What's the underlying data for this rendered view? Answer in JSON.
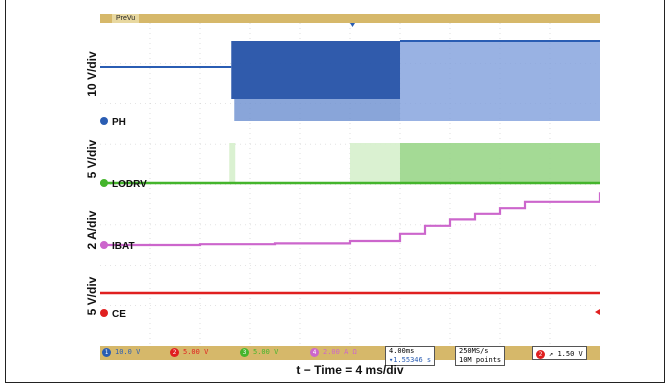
{
  "scope": {
    "mode_label": "PreVu",
    "channels": [
      {
        "id": "ch1",
        "name": "PH",
        "color": "#2a5db3",
        "scale_label": "10 V/div",
        "status": "10.0 V",
        "chip": "1"
      },
      {
        "id": "ch2",
        "name": "LODRV",
        "color": "#44b52c",
        "scale_label": "5 V/div",
        "status": "5.00 V",
        "chip": "3"
      },
      {
        "id": "ch3",
        "name": "IBAT",
        "color": "#cc66cc",
        "scale_label": "2 A/div",
        "status": "2.00 A Ω",
        "chip": "4"
      },
      {
        "id": "ch4",
        "name": "CE",
        "color": "#e02020",
        "scale_label": "5 V/div",
        "status": "5.00 V",
        "chip": "2"
      }
    ],
    "status": {
      "timebase": "4.00ms",
      "trigger_pos": "▾1.55346 s",
      "sample_rate": "250MS/s",
      "record": "10M points",
      "trig_chip": "2",
      "trig_level": "1.50 V",
      "trig_slope": "↗"
    },
    "xlabel": "t − Time = 4 ms/div"
  },
  "chart_data": {
    "type": "line",
    "title": "",
    "xlabel": "t − Time = 4 ms/div",
    "x_unit": "ms",
    "xlim": [
      0,
      40
    ],
    "series": [
      {
        "name": "PH",
        "ylabel": "10 V/div",
        "x": [
          0,
          10.5,
          10.6,
          24,
          40
        ],
        "values": [
          0,
          0,
          1,
          1,
          1
        ]
      },
      {
        "name": "LODRV",
        "ylabel": "5 V/div",
        "x": [
          0,
          24,
          24.1,
          40
        ],
        "values": [
          0,
          0,
          1,
          1
        ]
      },
      {
        "name": "IBAT",
        "ylabel": "2 A/div",
        "x": [
          0,
          8,
          14,
          20,
          24,
          26,
          28,
          30,
          32,
          34,
          40
        ],
        "values": [
          0,
          0.05,
          0.1,
          0.25,
          0.7,
          1.2,
          1.6,
          1.95,
          2.3,
          2.7,
          3.3
        ]
      },
      {
        "name": "CE",
        "ylabel": "5 V/div",
        "x": [
          0,
          40
        ],
        "values": [
          0,
          0
        ]
      }
    ]
  }
}
